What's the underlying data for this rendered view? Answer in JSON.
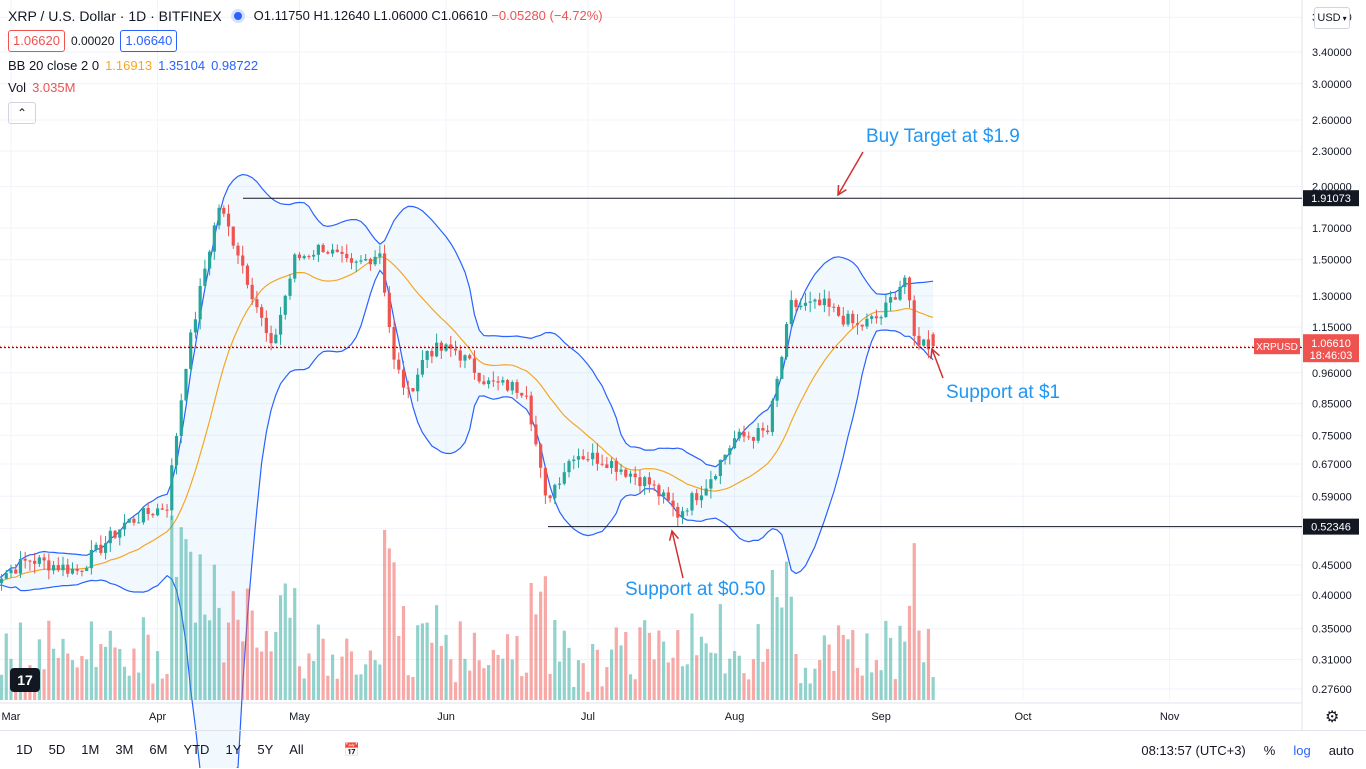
{
  "header": {
    "symbol": "XRP / U.S. Dollar · 1D · BITFINEX",
    "open": "O1.11750",
    "high": "H1.12640",
    "low": "L1.06000",
    "close": "C1.06610",
    "change": "−0.05280 (−4.72%)",
    "sell_price": "1.06620",
    "spread": "0.00020",
    "buy_price": "1.06640"
  },
  "indicators": {
    "bb_label": "BB 20 close 2 0",
    "bb_basis": "1.16913",
    "bb_upper": "1.35104",
    "bb_lower": "0.98722",
    "vol_label": "Vol",
    "vol_value": "3.035M",
    "collapse_icon": "chevron-up-icon"
  },
  "scale_button": "USD",
  "annotations": {
    "buy_target": "Buy Target at $1.9",
    "support_1": "Support at $1",
    "support_050": "Support at $0.50"
  },
  "price_tags": {
    "symbol_tag": "XRPUSD",
    "last": "1.06610",
    "countdown": "18:46:03",
    "line_low": "1.06022",
    "line_high": "1.91073",
    "line_support": "0.52346"
  },
  "bottom_bar": {
    "ranges": [
      "1D",
      "5D",
      "1M",
      "3M",
      "6M",
      "YTD",
      "1Y",
      "5Y",
      "All"
    ],
    "time": "08:13:57 (UTC+3)",
    "percent": "%",
    "log": "log",
    "auto": "auto",
    "compare_icon": "calendar-range-icon",
    "settings_icon": "gear-icon"
  },
  "logo_text": "17",
  "colors": {
    "up": "#26a69a",
    "down": "#ef5350",
    "bb_band": "#2962ff",
    "bb_basis": "#f5a623",
    "annotation": "#2196f3",
    "arrow": "#d32f2f"
  },
  "chart_data": {
    "type": "candlestick",
    "title": "XRP / U.S. Dollar · 1D · BITFINEX",
    "y_scale": "log",
    "y_ticks": [
      0.276,
      0.31,
      0.35,
      0.4,
      0.45,
      0.52,
      0.59,
      0.67,
      0.75,
      0.85,
      0.96,
      1.15,
      1.3,
      1.5,
      1.7,
      2.0,
      2.3,
      2.6,
      3.0,
      3.4,
      3.9
    ],
    "y_tick_labels": [
      "0.27600",
      "0.31000",
      "0.35000",
      "0.40000",
      "0.45000",
      "0.52000",
      "0.59000",
      "0.67000",
      "0.75000",
      "0.85000",
      "0.96000",
      "1.15000",
      "1.30000",
      "1.50000",
      "1.70000",
      "2.00000",
      "2.30000",
      "2.60000",
      "3.00000",
      "3.40000",
      "3.90000"
    ],
    "x_tick_labels": [
      "Mar",
      "Apr",
      "May",
      "Jun",
      "Jul",
      "Aug",
      "Sep",
      "Oct",
      "Nov"
    ],
    "x_tick_dates": [
      "2021-03-01",
      "2021-04-01",
      "2021-05-01",
      "2021-06-01",
      "2021-07-01",
      "2021-08-01",
      "2021-09-01",
      "2021-10-01",
      "2021-11-01"
    ],
    "start_date": "2021-02-24",
    "close_path": [
      [
        "2021-02-24",
        0.42
      ],
      [
        "2021-03-05",
        0.46
      ],
      [
        "2021-03-15",
        0.44
      ],
      [
        "2021-03-25",
        0.53
      ],
      [
        "2021-04-03",
        0.57
      ],
      [
        "2021-04-07",
        1.0
      ],
      [
        "2021-04-11",
        1.45
      ],
      [
        "2021-04-14",
        1.85
      ],
      [
        "2021-04-18",
        1.55
      ],
      [
        "2021-04-22",
        1.25
      ],
      [
        "2021-04-25",
        1.05
      ],
      [
        "2021-04-30",
        1.5
      ],
      [
        "2021-05-06",
        1.58
      ],
      [
        "2021-05-12",
        1.45
      ],
      [
        "2021-05-18",
        1.55
      ],
      [
        "2021-05-21",
        1.0
      ],
      [
        "2021-05-24",
        0.88
      ],
      [
        "2021-05-28",
        1.05
      ],
      [
        "2021-06-03",
        1.05
      ],
      [
        "2021-06-10",
        0.92
      ],
      [
        "2021-06-18",
        0.9
      ],
      [
        "2021-06-22",
        0.58
      ],
      [
        "2021-06-28",
        0.7
      ],
      [
        "2021-07-05",
        0.68
      ],
      [
        "2021-07-14",
        0.62
      ],
      [
        "2021-07-20",
        0.55
      ],
      [
        "2021-07-26",
        0.62
      ],
      [
        "2021-08-01",
        0.74
      ],
      [
        "2021-08-08",
        0.76
      ],
      [
        "2021-08-13",
        1.25
      ],
      [
        "2021-08-20",
        1.25
      ],
      [
        "2021-08-27",
        1.15
      ],
      [
        "2021-09-01",
        1.2
      ],
      [
        "2021-09-06",
        1.4
      ],
      [
        "2021-09-08",
        1.1
      ],
      [
        "2021-09-12",
        1.0666
      ]
    ],
    "current": {
      "open": 1.1175,
      "high": 1.1264,
      "low": 1.06,
      "close": 1.0661,
      "change": -0.0528,
      "change_pct": -4.72
    },
    "bollinger": {
      "length": 20,
      "source": "close",
      "std": 2,
      "basis": 1.16913,
      "upper": 1.35104,
      "lower": 0.98722
    },
    "volume_last": "3.035M",
    "horizontal_lines": [
      1.91073,
      1.06022,
      0.52346
    ],
    "annotations": [
      "Buy Target at $1.9",
      "Support at $1",
      "Support at $0.50"
    ]
  }
}
